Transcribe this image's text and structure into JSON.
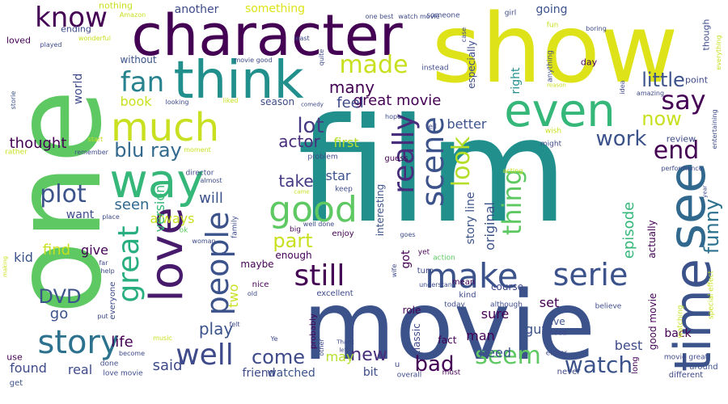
{
  "words": [
    {
      "text": "film",
      "color": "#21908d"
    },
    {
      "text": "movie",
      "color": "#3b528b"
    },
    {
      "text": "one",
      "color": "#5ec962"
    },
    {
      "text": "show",
      "color": "#dde318"
    },
    {
      "text": "character",
      "color": "#440154"
    },
    {
      "text": "time",
      "color": "#3b528b"
    },
    {
      "text": "see",
      "color": "#31688e"
    },
    {
      "text": "think",
      "color": "#21908d"
    },
    {
      "text": "even",
      "color": "#35b779"
    },
    {
      "text": "love",
      "color": "#481a6c"
    },
    {
      "text": "way",
      "color": "#35b779"
    },
    {
      "text": "much",
      "color": "#c8e020"
    },
    {
      "text": "story",
      "color": "#2c728e"
    },
    {
      "text": "make",
      "color": "#3b528b"
    },
    {
      "text": "good",
      "color": "#5ec962"
    },
    {
      "text": "serie",
      "color": "#3b528b"
    },
    {
      "text": "people",
      "color": "#3b528b"
    },
    {
      "text": "scene",
      "color": "#3b528b"
    },
    {
      "text": "really",
      "color": "#472d7b"
    },
    {
      "text": "still",
      "color": "#440154"
    },
    {
      "text": "know",
      "color": "#440154"
    },
    {
      "text": "great",
      "color": "#29af7f"
    },
    {
      "text": "well",
      "color": "#3e4a89"
    },
    {
      "text": "fan",
      "color": "#26828e"
    },
    {
      "text": "made",
      "color": "#c8e020"
    },
    {
      "text": "seem",
      "color": "#5ec962"
    },
    {
      "text": "watch",
      "color": "#3b528b"
    },
    {
      "text": "end",
      "color": "#440154"
    },
    {
      "text": "plot",
      "color": "#3b528b"
    },
    {
      "text": "look",
      "color": "#b5de2b"
    },
    {
      "text": "thing",
      "color": "#5ec962"
    },
    {
      "text": "say",
      "color": "#440154"
    },
    {
      "text": "now",
      "color": "#c8e020"
    },
    {
      "text": "funny",
      "color": "#2c728e"
    },
    {
      "text": "little",
      "color": "#3b528b"
    },
    {
      "text": "lot",
      "color": "#443a83"
    },
    {
      "text": "part",
      "color": "#c8e020"
    },
    {
      "text": "work",
      "color": "#3b528b"
    },
    {
      "text": "come",
      "color": "#3e4a89"
    },
    {
      "text": "bad",
      "color": "#440154"
    },
    {
      "text": "blu ray",
      "color": "#31688e"
    },
    {
      "text": "DVD",
      "color": "#3b528b"
    },
    {
      "text": "new",
      "color": "#472d7b"
    },
    {
      "text": "great movie",
      "color": "#440154"
    },
    {
      "text": "take",
      "color": "#443a83"
    },
    {
      "text": "actor",
      "color": "#472d7b"
    },
    {
      "text": "play",
      "color": "#3b528b"
    },
    {
      "text": "many",
      "color": "#440154"
    },
    {
      "text": "thought",
      "color": "#440154"
    },
    {
      "text": "feel",
      "color": "#3e4a89"
    },
    {
      "text": "book",
      "color": "#c8e020"
    },
    {
      "text": "first",
      "color": "#b5de2b"
    },
    {
      "text": "will",
      "color": "#3b528b"
    },
    {
      "text": "star",
      "color": "#3b528b"
    },
    {
      "text": "seen",
      "color": "#31688e"
    },
    {
      "text": "always",
      "color": "#c8e020"
    },
    {
      "text": "find",
      "color": "#c8e020"
    },
    {
      "text": "give",
      "color": "#440154"
    },
    {
      "text": "kid",
      "color": "#3b528b"
    },
    {
      "text": "life",
      "color": "#440154"
    },
    {
      "text": "said",
      "color": "#3e4a89"
    },
    {
      "text": "real",
      "color": "#3e4a89"
    },
    {
      "text": "found",
      "color": "#3e4a89"
    },
    {
      "text": "go",
      "color": "#3b528b"
    },
    {
      "text": "want",
      "color": "#3e4a89"
    },
    {
      "text": "two",
      "color": "#c8e020"
    },
    {
      "text": "version",
      "color": "#35b779"
    },
    {
      "text": "episode",
      "color": "#35b779"
    },
    {
      "text": "original",
      "color": "#3b528b"
    },
    {
      "text": "story line",
      "color": "#3b528b"
    },
    {
      "text": "got",
      "color": "#440154"
    },
    {
      "text": "better",
      "color": "#3b528b"
    },
    {
      "text": "set",
      "color": "#440154"
    },
    {
      "text": "sure",
      "color": "#440154"
    },
    {
      "text": "man",
      "color": "#440154"
    },
    {
      "text": "guy",
      "color": "#3b528b"
    },
    {
      "text": "need",
      "color": "#3b528b"
    },
    {
      "text": "best",
      "color": "#3e4a89"
    },
    {
      "text": "back",
      "color": "#440154"
    },
    {
      "text": "review",
      "color": "#3e4a89"
    },
    {
      "text": "going",
      "color": "#3b528b"
    },
    {
      "text": "right",
      "color": "#21908d"
    },
    {
      "text": "something",
      "color": "#dde318"
    },
    {
      "text": "another",
      "color": "#3e4a89"
    },
    {
      "text": "world",
      "color": "#3e4a89"
    },
    {
      "text": "maybe",
      "color": "#440154"
    },
    {
      "text": "enough",
      "color": "#440154"
    },
    {
      "text": "may",
      "color": "#b5de2b"
    },
    {
      "text": "watched",
      "color": "#3b528b"
    },
    {
      "text": "bit",
      "color": "#3e4a89"
    },
    {
      "text": "friend",
      "color": "#3e4a89"
    },
    {
      "text": "classic",
      "color": "#3e4a89"
    },
    {
      "text": "fact",
      "color": "#440154"
    },
    {
      "text": "role",
      "color": "#440154"
    },
    {
      "text": "live",
      "color": "#3b528b"
    },
    {
      "text": "course",
      "color": "#3e4a89"
    },
    {
      "text": "actually",
      "color": "#440154"
    },
    {
      "text": "good movie",
      "color": "#440154"
    },
    {
      "text": "season",
      "color": "#3e4a89"
    },
    {
      "text": "interesting",
      "color": "#3b528b"
    },
    {
      "text": "ending",
      "color": "#3e4a89"
    },
    {
      "text": "nothing",
      "color": "#c8e020"
    },
    {
      "text": "loved",
      "color": "#440154"
    },
    {
      "text": "without",
      "color": "#3b528b"
    },
    {
      "text": "especially",
      "color": "#3e4a89"
    },
    {
      "text": "day",
      "color": "#440154"
    },
    {
      "text": "point",
      "color": "#3e4a89"
    },
    {
      "text": "though",
      "color": "#3e4a89"
    },
    {
      "text": "use",
      "color": "#440154"
    },
    {
      "text": "get",
      "color": "#3b528b"
    },
    {
      "text": "everyone",
      "color": "#3e4a89"
    },
    {
      "text": "done",
      "color": "#3e4a89"
    },
    {
      "text": "love movie",
      "color": "#3e4a89"
    },
    {
      "text": "long",
      "color": "#440154"
    },
    {
      "text": "around",
      "color": "#3b528b"
    },
    {
      "text": "different",
      "color": "#3e4a89"
    },
    {
      "text": "movie great",
      "color": "#3e4a89"
    },
    {
      "text": "probably",
      "color": "#440154"
    },
    {
      "text": "kind",
      "color": "#3e4a89"
    },
    {
      "text": "mean",
      "color": "#440154"
    },
    {
      "text": "turn",
      "color": "#3e4a89"
    },
    {
      "text": "enjoy",
      "color": "#440154"
    },
    {
      "text": "nice",
      "color": "#440154"
    },
    {
      "text": "excellent",
      "color": "#3e4a89"
    },
    {
      "text": "never",
      "color": "#3e4a89"
    },
    {
      "text": "must",
      "color": "#440154"
    },
    {
      "text": "overall",
      "color": "#3e4a89"
    },
    {
      "text": "either",
      "color": "#3e4a89"
    },
    {
      "text": "used",
      "color": "#3e4a89"
    },
    {
      "text": "although",
      "color": "#3e4a89"
    },
    {
      "text": "today",
      "color": "#3e4a89"
    },
    {
      "text": "yet",
      "color": "#440154"
    },
    {
      "text": "action",
      "color": "#5ec962"
    },
    {
      "text": "goes",
      "color": "#3e4a89"
    },
    {
      "text": "big",
      "color": "#440154"
    },
    {
      "text": "well done",
      "color": "#3e4a89"
    },
    {
      "text": "keep",
      "color": "#3e4a89"
    },
    {
      "text": "guess",
      "color": "#440154"
    },
    {
      "text": "tell",
      "color": "#3e4a89"
    },
    {
      "text": "problem",
      "color": "#3e4a89"
    },
    {
      "text": "director",
      "color": "#3e4a89"
    },
    {
      "text": "moment",
      "color": "#c8e020"
    },
    {
      "text": "start",
      "color": "#c8e020"
    },
    {
      "text": "remember",
      "color": "#3e4a89"
    },
    {
      "text": "rather",
      "color": "#c8e020"
    },
    {
      "text": "storie",
      "color": "#3b528b"
    },
    {
      "text": "played",
      "color": "#3e4a89"
    },
    {
      "text": "wonderful",
      "color": "#c8e020"
    },
    {
      "text": "Amazon",
      "color": "#c8e020"
    },
    {
      "text": "one best",
      "color": "#3e4a89"
    },
    {
      "text": "watch movie",
      "color": "#3e4a89"
    },
    {
      "text": "someone",
      "color": "#3e4a89"
    },
    {
      "text": "girl",
      "color": "#3e4a89"
    },
    {
      "text": "fun",
      "color": "#c8e020"
    },
    {
      "text": "boring",
      "color": "#3e4a89"
    },
    {
      "text": "anything",
      "color": "#3e4a89"
    },
    {
      "text": "case",
      "color": "#3e4a89"
    },
    {
      "text": "least",
      "color": "#3e4a89"
    },
    {
      "text": "movie good",
      "color": "#3e4a89"
    },
    {
      "text": "quite",
      "color": "#3e4a89"
    },
    {
      "text": "instead",
      "color": "#3e4a89"
    },
    {
      "text": "liked",
      "color": "#c8e020"
    },
    {
      "text": "looking",
      "color": "#3e4a89"
    },
    {
      "text": "comedy",
      "color": "#3e4a89"
    },
    {
      "text": "hope",
      "color": "#3e4a89"
    },
    {
      "text": "idea",
      "color": "#3e4a89"
    },
    {
      "text": "amazing",
      "color": "#3e4a89"
    },
    {
      "text": "reason",
      "color": "#c8e020"
    },
    {
      "text": "everything",
      "color": "#c8e020"
    },
    {
      "text": "entertaining",
      "color": "#3e4a89"
    },
    {
      "text": "wish",
      "color": "#c8e020"
    },
    {
      "text": "might",
      "color": "#3e4a89"
    },
    {
      "text": "acting",
      "color": "#c8e020"
    },
    {
      "text": "performance",
      "color": "#3e4a89"
    },
    {
      "text": "year",
      "color": "#3e4a89"
    },
    {
      "text": "special effect",
      "color": "#c8e020"
    },
    {
      "text": "watching",
      "color": "#c8e020"
    },
    {
      "text": "believe",
      "color": "#3e4a89"
    },
    {
      "text": "understand",
      "color": "#3e4a89"
    },
    {
      "text": "wife",
      "color": "#3e4a89"
    },
    {
      "text": "came",
      "color": "#c8e020"
    },
    {
      "text": "woman",
      "color": "#3e4a89"
    },
    {
      "text": "ok",
      "color": "#5ec962"
    },
    {
      "text": "family",
      "color": "#3e4a89"
    },
    {
      "text": "place",
      "color": "#3e4a89"
    },
    {
      "text": "almost",
      "color": "#3e4a89"
    },
    {
      "text": "old",
      "color": "#3e4a89"
    },
    {
      "text": "felt",
      "color": "#3e4a89"
    },
    {
      "text": "Ye",
      "color": "#3e4a89"
    },
    {
      "text": "other",
      "color": "#3e4a89"
    },
    {
      "text": "Thank",
      "color": "#3e4a89"
    },
    {
      "text": "left",
      "color": "#3e4a89"
    },
    {
      "text": "music",
      "color": "#c8e020"
    },
    {
      "text": "become",
      "color": "#3e4a89"
    },
    {
      "text": "far",
      "color": "#3e4a89"
    },
    {
      "text": "help",
      "color": "#3e4a89"
    },
    {
      "text": "making",
      "color": "#c8e020"
    },
    {
      "text": "put",
      "color": "#3e4a89"
    },
    {
      "text": "u",
      "color": "#3e4a89"
    }
  ]
}
